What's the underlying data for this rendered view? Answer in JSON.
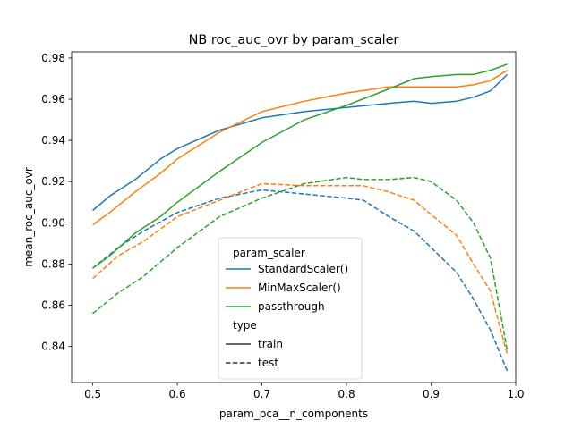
{
  "chart_data": {
    "type": "line",
    "title": "NB roc_auc_ovr by param_scaler",
    "xlabel": "param_pca__n_components",
    "ylabel": "mean_roc_auc_ovr",
    "xlim": [
      0.475,
      1.0
    ],
    "ylim": [
      0.8225,
      0.983
    ],
    "xticks": [
      "0.5",
      "0.6",
      "0.7",
      "0.8",
      "0.9",
      "1.0"
    ],
    "yticks": [
      "0.84",
      "0.86",
      "0.88",
      "0.90",
      "0.92",
      "0.94",
      "0.96",
      "0.98"
    ],
    "grid": false,
    "legend": {
      "position": "lower-center",
      "hue_title": "param_scaler",
      "style_title": "type",
      "style_entries": [
        {
          "label": "train",
          "dash": "solid"
        },
        {
          "label": "test",
          "dash": "dashed"
        }
      ]
    },
    "series": [
      {
        "name": "StandardScaler()",
        "type": "train",
        "color": "#1f77b4",
        "x": [
          0.5,
          0.52,
          0.55,
          0.58,
          0.6,
          0.65,
          0.7,
          0.75,
          0.8,
          0.85,
          0.88,
          0.9,
          0.93,
          0.95,
          0.97,
          0.99
        ],
        "y": [
          0.906,
          0.913,
          0.921,
          0.931,
          0.936,
          0.945,
          0.951,
          0.954,
          0.956,
          0.958,
          0.959,
          0.958,
          0.959,
          0.961,
          0.964,
          0.972
        ]
      },
      {
        "name": "StandardScaler()",
        "type": "test",
        "color": "#1f77b4",
        "x": [
          0.5,
          0.53,
          0.56,
          0.6,
          0.65,
          0.7,
          0.75,
          0.8,
          0.82,
          0.85,
          0.88,
          0.9,
          0.93,
          0.95,
          0.97,
          0.99
        ],
        "y": [
          0.878,
          0.888,
          0.896,
          0.905,
          0.912,
          0.916,
          0.914,
          0.912,
          0.911,
          0.903,
          0.896,
          0.888,
          0.876,
          0.863,
          0.848,
          0.828
        ]
      },
      {
        "name": "MinMaxScaler()",
        "type": "train",
        "color": "#ff7f0e",
        "x": [
          0.5,
          0.52,
          0.55,
          0.58,
          0.6,
          0.65,
          0.7,
          0.75,
          0.8,
          0.85,
          0.88,
          0.9,
          0.93,
          0.95,
          0.97,
          0.99
        ],
        "y": [
          0.899,
          0.905,
          0.915,
          0.924,
          0.931,
          0.944,
          0.954,
          0.959,
          0.963,
          0.966,
          0.966,
          0.966,
          0.966,
          0.967,
          0.969,
          0.974
        ]
      },
      {
        "name": "MinMaxScaler()",
        "type": "test",
        "color": "#ff7f0e",
        "x": [
          0.5,
          0.53,
          0.56,
          0.6,
          0.65,
          0.7,
          0.75,
          0.8,
          0.82,
          0.85,
          0.88,
          0.9,
          0.93,
          0.95,
          0.97,
          0.99
        ],
        "y": [
          0.873,
          0.884,
          0.891,
          0.903,
          0.911,
          0.919,
          0.918,
          0.918,
          0.918,
          0.915,
          0.911,
          0.904,
          0.894,
          0.88,
          0.867,
          0.836
        ]
      },
      {
        "name": "passthrough",
        "type": "train",
        "color": "#2ca02c",
        "x": [
          0.5,
          0.52,
          0.55,
          0.58,
          0.6,
          0.65,
          0.7,
          0.75,
          0.8,
          0.85,
          0.88,
          0.9,
          0.93,
          0.95,
          0.97,
          0.99
        ],
        "y": [
          0.878,
          0.884,
          0.895,
          0.903,
          0.91,
          0.925,
          0.939,
          0.95,
          0.957,
          0.965,
          0.97,
          0.971,
          0.972,
          0.972,
          0.974,
          0.977
        ]
      },
      {
        "name": "passthrough",
        "type": "test",
        "color": "#2ca02c",
        "x": [
          0.5,
          0.53,
          0.56,
          0.6,
          0.65,
          0.7,
          0.75,
          0.8,
          0.82,
          0.85,
          0.88,
          0.9,
          0.93,
          0.95,
          0.97,
          0.99
        ],
        "y": [
          0.856,
          0.866,
          0.874,
          0.888,
          0.903,
          0.912,
          0.919,
          0.922,
          0.921,
          0.921,
          0.922,
          0.92,
          0.911,
          0.9,
          0.883,
          0.838
        ]
      }
    ]
  }
}
